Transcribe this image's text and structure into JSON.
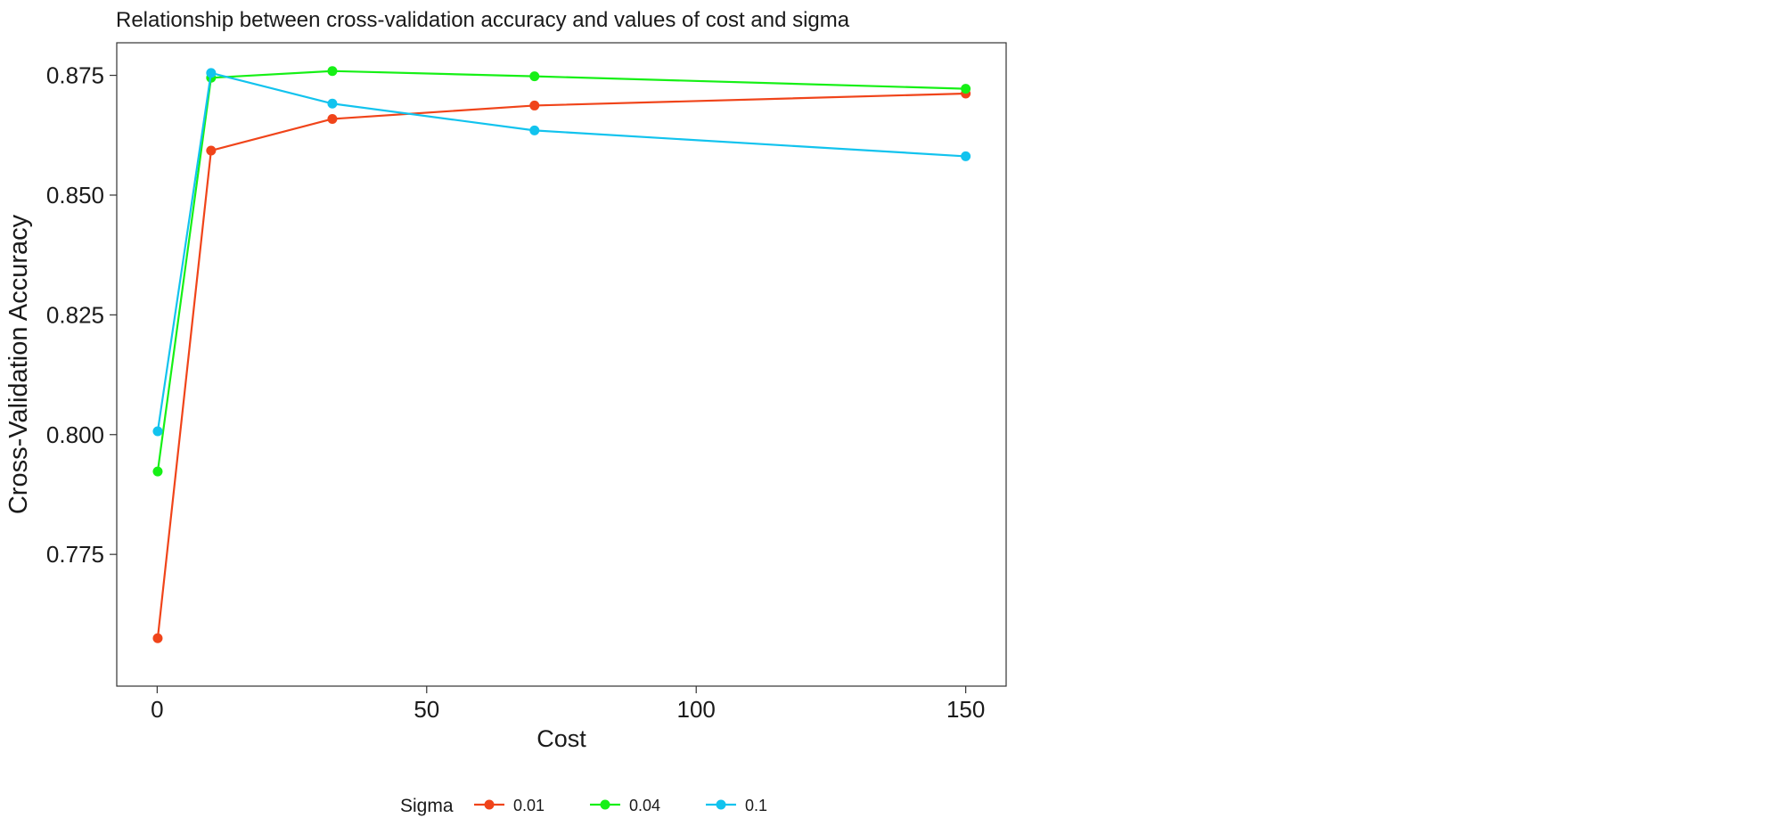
{
  "chart_data": {
    "type": "line",
    "title": "Relationship between cross-validation accuracy and values of cost and sigma",
    "xlabel": "Cost",
    "ylabel": "Cross-Validation Accuracy",
    "xlim": [
      -7.5,
      157.5
    ],
    "ylim": [
      0.7475,
      0.8818
    ],
    "x_ticks": [
      0,
      50,
      100,
      150
    ],
    "x_tick_labels": [
      "0",
      "50",
      "100",
      "150"
    ],
    "y_ticks": [
      0.775,
      0.8,
      0.825,
      0.85,
      0.875
    ],
    "y_tick_labels": [
      "0.775",
      "0.800",
      "0.825",
      "0.850",
      "0.875"
    ],
    "grid": false,
    "legend": {
      "title": "Sigma",
      "position": "bottom"
    },
    "x": [
      0.1,
      10,
      32.5,
      70,
      150
    ],
    "series": [
      {
        "name": "0.01",
        "color": "#f0441a",
        "values": [
          0.7575,
          0.8593,
          0.8659,
          0.8687,
          0.8712
        ]
      },
      {
        "name": "0.04",
        "color": "#16f016",
        "values": [
          0.7923,
          0.8745,
          0.8759,
          0.8748,
          0.8722
        ]
      },
      {
        "name": "0.1",
        "color": "#12c3ee",
        "values": [
          0.8007,
          0.8755,
          0.8691,
          0.8635,
          0.8581
        ]
      }
    ]
  }
}
